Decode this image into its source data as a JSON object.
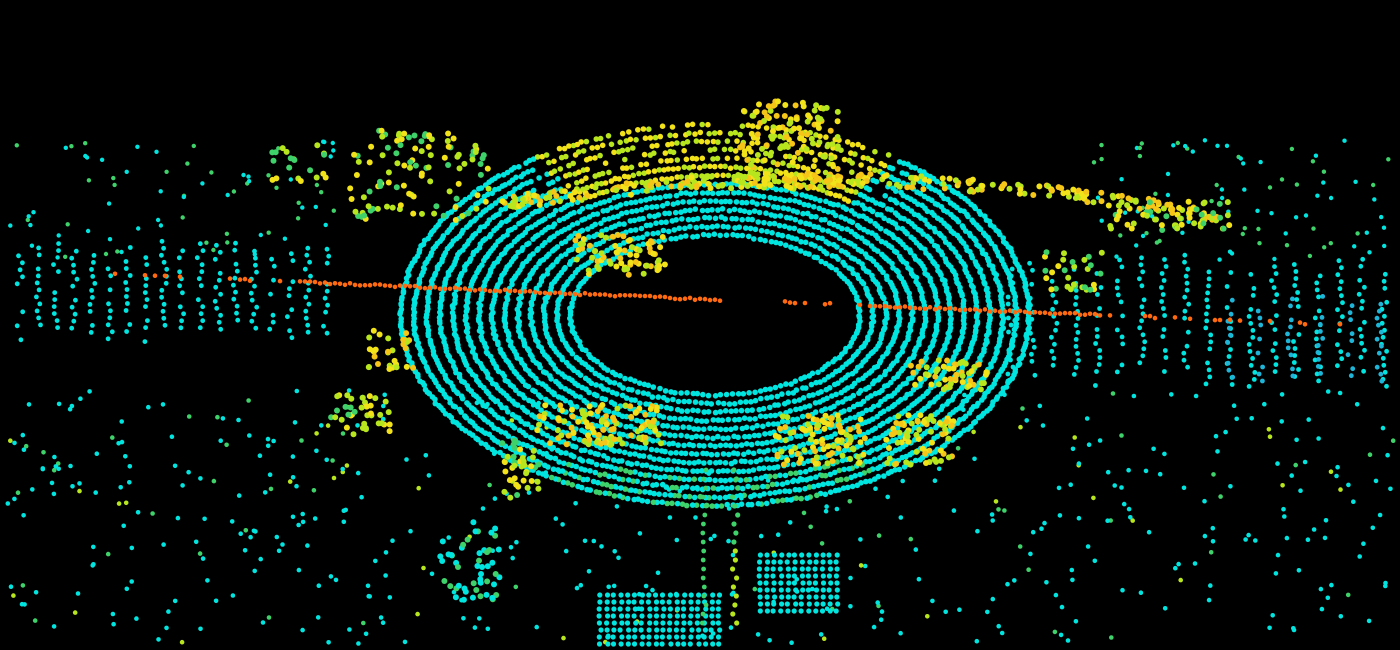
{
  "scene": {
    "kind": "lidar-point-cloud",
    "background": "#000000",
    "colormap": {
      "low": "#00e5e0",
      "mid_low": "#00d0c8",
      "mid": "#3fd16a",
      "mid_high": "#b8e61e",
      "high": "#f2e21a",
      "peak": "#f5c518"
    },
    "trajectory_color": "#ff6a10",
    "far_color": "#1fb5d8"
  }
}
